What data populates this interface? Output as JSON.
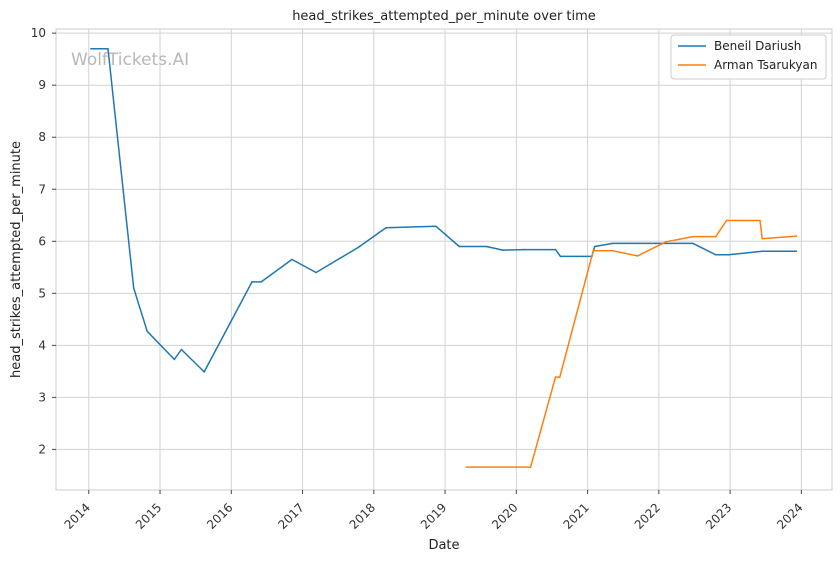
{
  "chart_data": {
    "type": "line",
    "title": "head_strikes_attempted_per_minute over time",
    "xlabel": "Date",
    "ylabel": "head_strikes_attempted_per_minute",
    "watermark": "WolfTickets.AI",
    "grid": true,
    "legend_position": "top-right",
    "x_ticks": [
      "2014",
      "2015",
      "2016",
      "2017",
      "2018",
      "2019",
      "2020",
      "2021",
      "2022",
      "2023",
      "2024"
    ],
    "y_ticks": [
      "2",
      "3",
      "4",
      "5",
      "6",
      "7",
      "8",
      "9",
      "10"
    ],
    "xlim": [
      2013.54,
      2024.43
    ],
    "ylim": [
      1.22,
      10.08
    ],
    "series": [
      {
        "name": "Beneil Dariush",
        "color": "#1f77b4",
        "points": [
          [
            2014.03,
            9.7
          ],
          [
            2014.27,
            9.7
          ],
          [
            2014.63,
            5.1
          ],
          [
            2014.82,
            4.27
          ],
          [
            2015.2,
            3.73
          ],
          [
            2015.3,
            3.92
          ],
          [
            2015.62,
            3.49
          ],
          [
            2016.29,
            5.22
          ],
          [
            2016.42,
            5.22
          ],
          [
            2016.85,
            5.65
          ],
          [
            2017.19,
            5.4
          ],
          [
            2017.78,
            5.88
          ],
          [
            2018.17,
            6.26
          ],
          [
            2018.87,
            6.29
          ],
          [
            2019.2,
            5.9
          ],
          [
            2019.58,
            5.9
          ],
          [
            2019.81,
            5.83
          ],
          [
            2020.1,
            5.84
          ],
          [
            2020.55,
            5.84
          ],
          [
            2020.62,
            5.71
          ],
          [
            2021.06,
            5.71
          ],
          [
            2021.1,
            5.9
          ],
          [
            2021.35,
            5.96
          ],
          [
            2021.95,
            5.96
          ],
          [
            2022.48,
            5.96
          ],
          [
            2022.8,
            5.74
          ],
          [
            2022.98,
            5.74
          ],
          [
            2023.45,
            5.81
          ],
          [
            2023.93,
            5.81
          ]
        ]
      },
      {
        "name": "Arman Tsarukyan",
        "color": "#ff7f0e",
        "points": [
          [
            2019.3,
            1.66
          ],
          [
            2020.2,
            1.66
          ],
          [
            2020.55,
            3.39
          ],
          [
            2020.61,
            3.39
          ],
          [
            2021.08,
            5.82
          ],
          [
            2021.35,
            5.82
          ],
          [
            2021.7,
            5.72
          ],
          [
            2022.1,
            5.99
          ],
          [
            2022.48,
            6.09
          ],
          [
            2022.8,
            6.09
          ],
          [
            2022.95,
            6.4
          ],
          [
            2023.42,
            6.4
          ],
          [
            2023.45,
            6.05
          ],
          [
            2023.93,
            6.1
          ]
        ]
      }
    ]
  }
}
